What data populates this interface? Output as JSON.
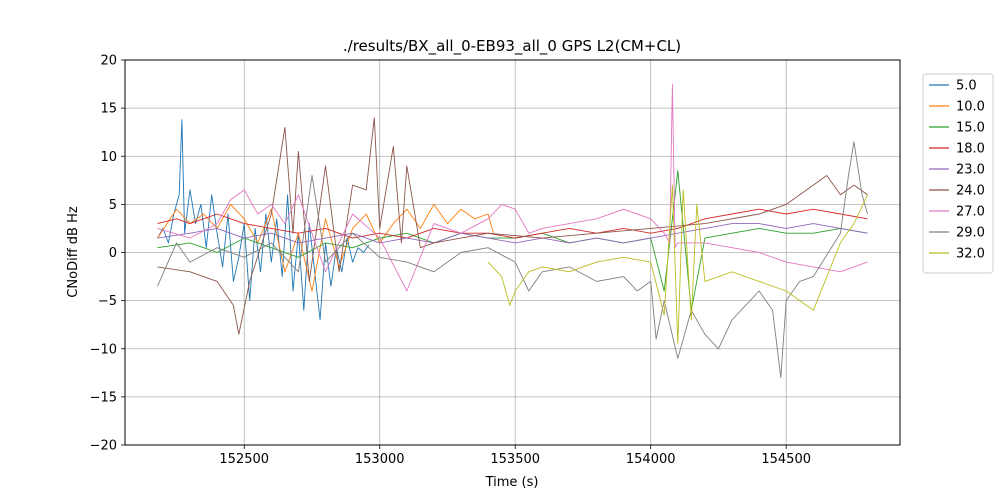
{
  "chart_data": {
    "type": "line",
    "title": "./results/BX_all_0-EB93_all_0 GPS L2(CM+CL)",
    "xlabel": "Time (s)",
    "ylabel": "CNoDiff dB Hz",
    "xlim": [
      152060,
      154920
    ],
    "ylim": [
      -20,
      20
    ],
    "xticks": [
      152500,
      153000,
      153500,
      154000,
      154500
    ],
    "yticks": [
      -20,
      -15,
      -10,
      -5,
      0,
      5,
      10,
      15,
      20
    ],
    "grid": true,
    "legend_position": "outside-right-top",
    "series": [
      {
        "name": "5.0",
        "color": "#1f77b4",
        "x": [
          152180,
          152200,
          152220,
          152240,
          152260,
          152270,
          152280,
          152300,
          152320,
          152340,
          152360,
          152380,
          152400,
          152420,
          152440,
          152460,
          152480,
          152500,
          152520,
          152540,
          152560,
          152580,
          152600,
          152620,
          152640,
          152660,
          152680,
          152700,
          152720,
          152740,
          152760,
          152780,
          152800,
          152820,
          152840,
          152860,
          152880,
          152900,
          152920,
          152940,
          152960
        ],
        "y": [
          1.5,
          2.5,
          1.0,
          4.0,
          6.0,
          13.8,
          2.0,
          6.5,
          3.0,
          5.0,
          0.5,
          6.0,
          2.0,
          -1.5,
          4.0,
          -3.0,
          -0.5,
          3.0,
          -5.0,
          2.5,
          -2.0,
          4.0,
          -1.0,
          3.5,
          -2.5,
          6.0,
          -4.0,
          2.0,
          -6.0,
          3.0,
          -2.0,
          -7.0,
          1.0,
          -3.5,
          0.5,
          -2.0,
          1.5,
          -1.0,
          0.5,
          0.0,
          0.8
        ]
      },
      {
        "name": "10.0",
        "color": "#ff7f0e",
        "x": [
          152180,
          152250,
          152300,
          152350,
          152400,
          152450,
          152500,
          152550,
          152600,
          152650,
          152700,
          152750,
          152800,
          152850,
          152900,
          152950,
          153000,
          153050,
          153100,
          153150,
          153200,
          153250,
          153300,
          153350,
          153400,
          153420
        ],
        "y": [
          1.5,
          4.5,
          3.0,
          4.0,
          2.5,
          5.0,
          3.5,
          1.0,
          4.5,
          -2.0,
          2.0,
          -4.0,
          3.5,
          -1.5,
          2.5,
          4.0,
          1.0,
          3.0,
          4.5,
          2.5,
          5.0,
          3.0,
          4.5,
          3.5,
          4.0,
          2.0
        ]
      },
      {
        "name": "15.0",
        "color": "#2ca02c",
        "x": [
          152180,
          152300,
          152400,
          152500,
          152600,
          152700,
          152800,
          152900,
          153000,
          153100,
          153200,
          153300,
          153400,
          153500,
          153600,
          153700,
          153800,
          153900,
          154000,
          154050,
          154100,
          154150,
          154200,
          154300,
          154400,
          154500,
          154600,
          154700,
          154800
        ],
        "y": [
          0.5,
          1.0,
          0.0,
          1.5,
          0.5,
          -0.5,
          1.0,
          0.5,
          1.5,
          2.0,
          1.0,
          2.0,
          1.5,
          1.5,
          2.0,
          1.0,
          1.5,
          1.0,
          1.5,
          -4.0,
          8.5,
          -6.0,
          1.5,
          2.0,
          2.5,
          2.0,
          2.0,
          2.5,
          2.0
        ]
      },
      {
        "name": "18.0",
        "color": "#d62728",
        "x": [
          152180,
          152250,
          152300,
          152350,
          152400,
          152450,
          152500,
          152600,
          152700,
          152800,
          152900,
          153000,
          153100,
          153200,
          153300,
          153400,
          153500,
          153600,
          153700,
          153800,
          153900,
          154000,
          154100,
          154200,
          154300,
          154400,
          154500,
          154600,
          154700,
          154800
        ],
        "y": [
          3.0,
          3.5,
          3.0,
          3.5,
          4.0,
          3.5,
          3.0,
          2.5,
          2.0,
          2.5,
          1.5,
          2.0,
          1.5,
          2.5,
          2.0,
          2.0,
          1.5,
          2.0,
          2.5,
          2.0,
          2.5,
          2.0,
          2.5,
          3.5,
          4.0,
          4.5,
          4.0,
          4.5,
          4.0,
          3.5
        ]
      },
      {
        "name": "23.0",
        "color": "#9467bd",
        "x": [
          152180,
          152300,
          152400,
          152500,
          152600,
          152700,
          152800,
          152900,
          153000,
          153100,
          153200,
          153300,
          153400,
          153500,
          153600,
          153700,
          153800,
          153900,
          154000,
          154100,
          154200,
          154300,
          154400,
          154500,
          154600,
          154700,
          154800
        ],
        "y": [
          1.5,
          2.0,
          2.5,
          1.5,
          2.0,
          1.0,
          1.5,
          2.0,
          1.0,
          1.5,
          1.0,
          2.0,
          1.5,
          1.0,
          1.5,
          1.0,
          1.5,
          1.0,
          1.5,
          2.0,
          2.5,
          3.0,
          3.0,
          2.5,
          3.0,
          2.5,
          2.0
        ]
      },
      {
        "name": "24.0",
        "color": "#8c564b",
        "x": [
          152180,
          152300,
          152400,
          152460,
          152480,
          152520,
          152600,
          152650,
          152680,
          152700,
          152740,
          152800,
          152850,
          152900,
          152950,
          152980,
          153000,
          153050,
          153080,
          153100,
          153150,
          153200,
          153400,
          153600,
          153800,
          154000,
          154200,
          154400,
          154500,
          154600,
          154650,
          154700,
          154750,
          154800
        ],
        "y": [
          -1.5,
          -2.0,
          -3.0,
          -5.5,
          -8.5,
          -3.0,
          4.0,
          13.0,
          2.0,
          10.5,
          -3.0,
          9.0,
          -2.0,
          7.0,
          6.5,
          14.0,
          2.5,
          11.0,
          1.0,
          9.0,
          0.5,
          1.0,
          2.0,
          1.5,
          2.0,
          2.5,
          3.0,
          4.0,
          5.0,
          7.0,
          8.0,
          6.0,
          7.0,
          6.0
        ]
      },
      {
        "name": "27.0",
        "color": "#e377c2",
        "x": [
          152180,
          152300,
          152400,
          152450,
          152500,
          152550,
          152600,
          152650,
          152700,
          152800,
          152900,
          153000,
          153100,
          153200,
          153300,
          153400,
          153450,
          153500,
          153550,
          153600,
          153700,
          153800,
          153900,
          154000,
          154050,
          154070,
          154080,
          154090,
          154100,
          154200,
          154300,
          154400,
          154500,
          154600,
          154700,
          154800
        ],
        "y": [
          2.5,
          1.5,
          3.0,
          5.5,
          6.5,
          4.0,
          5.0,
          3.0,
          6.0,
          -2.0,
          4.0,
          1.5,
          -4.0,
          3.0,
          2.0,
          3.5,
          5.0,
          4.5,
          2.0,
          2.5,
          3.0,
          3.5,
          4.5,
          3.5,
          2.0,
          1.0,
          17.5,
          0.5,
          1.0,
          1.0,
          0.5,
          0.0,
          -1.0,
          -1.5,
          -2.0,
          -1.0
        ]
      },
      {
        "name": "29.0",
        "color": "#7f7f7f",
        "x": [
          152180,
          152250,
          152300,
          152400,
          152500,
          152600,
          152700,
          152750,
          152800,
          152900,
          153000,
          153100,
          153200,
          153300,
          153400,
          153500,
          153550,
          153600,
          153700,
          153800,
          153900,
          153950,
          154000,
          154020,
          154050,
          154100,
          154150,
          154200,
          154250,
          154300,
          154400,
          154450,
          154480,
          154500,
          154550,
          154600,
          154700,
          154730,
          154750,
          154780,
          154800
        ],
        "y": [
          -3.5,
          1.0,
          -1.0,
          0.5,
          -0.5,
          1.0,
          -2.0,
          8.0,
          -1.0,
          2.0,
          -0.5,
          -1.0,
          -2.0,
          0.0,
          0.5,
          -1.0,
          -4.0,
          -2.0,
          -1.5,
          -3.0,
          -2.5,
          -4.0,
          -3.0,
          -9.0,
          -5.0,
          -11.0,
          -6.0,
          -8.5,
          -10.0,
          -7.0,
          -4.0,
          -6.0,
          -13.0,
          -5.0,
          -3.0,
          -2.5,
          2.0,
          8.0,
          11.5,
          6.0,
          4.0
        ]
      },
      {
        "name": "32.0",
        "color": "#bcbd22",
        "x": [
          153400,
          153450,
          153480,
          153500,
          153550,
          153600,
          153700,
          153800,
          153900,
          154000,
          154050,
          154080,
          154100,
          154120,
          154150,
          154170,
          154200,
          154300,
          154400,
          154500,
          154600,
          154700,
          154750,
          154800
        ],
        "y": [
          -1.0,
          -2.5,
          -5.5,
          -4.0,
          -2.0,
          -1.5,
          -2.0,
          -1.0,
          -0.5,
          -1.0,
          -6.5,
          7.0,
          -9.5,
          6.5,
          -7.0,
          5.0,
          -3.0,
          -2.0,
          -3.0,
          -4.0,
          -6.0,
          1.0,
          3.0,
          6.0
        ]
      }
    ]
  }
}
